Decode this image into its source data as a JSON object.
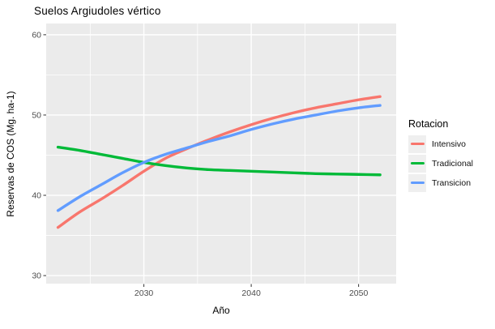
{
  "title": "Suelos Argiudoles vértico",
  "colors": {
    "panel_background": "#EBEBEB",
    "grid": "#FFFFFF",
    "tick_label": "#4D4D4D",
    "tick_mark": "#333333",
    "legend_key_fill": "#EFEFEF"
  },
  "legend": {
    "title": "Rotacion",
    "items": [
      {
        "label": "Intensivo",
        "color": "#F8766D"
      },
      {
        "label": "Tradicional",
        "color": "#00BA38"
      },
      {
        "label": "Transicion",
        "color": "#619CFF"
      }
    ]
  },
  "chart_data": {
    "type": "line",
    "title": "Suelos Argiudoles vértico",
    "xlabel": "Año",
    "ylabel": "Reservas de COS (Mg. ha-1)",
    "x": [
      2022,
      2024,
      2026,
      2028,
      2030,
      2032,
      2034,
      2036,
      2038,
      2040,
      2042,
      2044,
      2046,
      2048,
      2050,
      2052
    ],
    "series": [
      {
        "name": "Intensivo",
        "color": "#F8766D",
        "values": [
          36.0,
          37.9,
          39.5,
          41.2,
          43.0,
          44.6,
          45.8,
          46.9,
          47.9,
          48.8,
          49.6,
          50.3,
          50.9,
          51.4,
          51.9,
          52.3
        ]
      },
      {
        "name": "Tradicional",
        "color": "#00BA38",
        "values": [
          46.0,
          45.6,
          45.1,
          44.6,
          44.1,
          43.7,
          43.4,
          43.2,
          43.1,
          43.0,
          42.9,
          42.8,
          42.7,
          42.65,
          42.6,
          42.55
        ]
      },
      {
        "name": "Transicion",
        "color": "#619CFF",
        "values": [
          38.1,
          39.8,
          41.3,
          42.8,
          44.1,
          45.1,
          45.9,
          46.7,
          47.4,
          48.2,
          48.9,
          49.5,
          50.0,
          50.5,
          50.9,
          51.2
        ]
      }
    ],
    "xlim": [
      2020.9,
      2053.5
    ],
    "ylim": [
      29.0,
      61.4
    ],
    "x_ticks": [
      2030,
      2040,
      2050
    ],
    "x_minor_ticks": [
      2025,
      2035,
      2045
    ],
    "y_ticks": [
      30,
      40,
      50,
      60
    ],
    "y_minor_ticks": [
      35,
      45,
      55
    ],
    "grid": true,
    "legend_position": "right",
    "legend_title": "Rotacion"
  }
}
